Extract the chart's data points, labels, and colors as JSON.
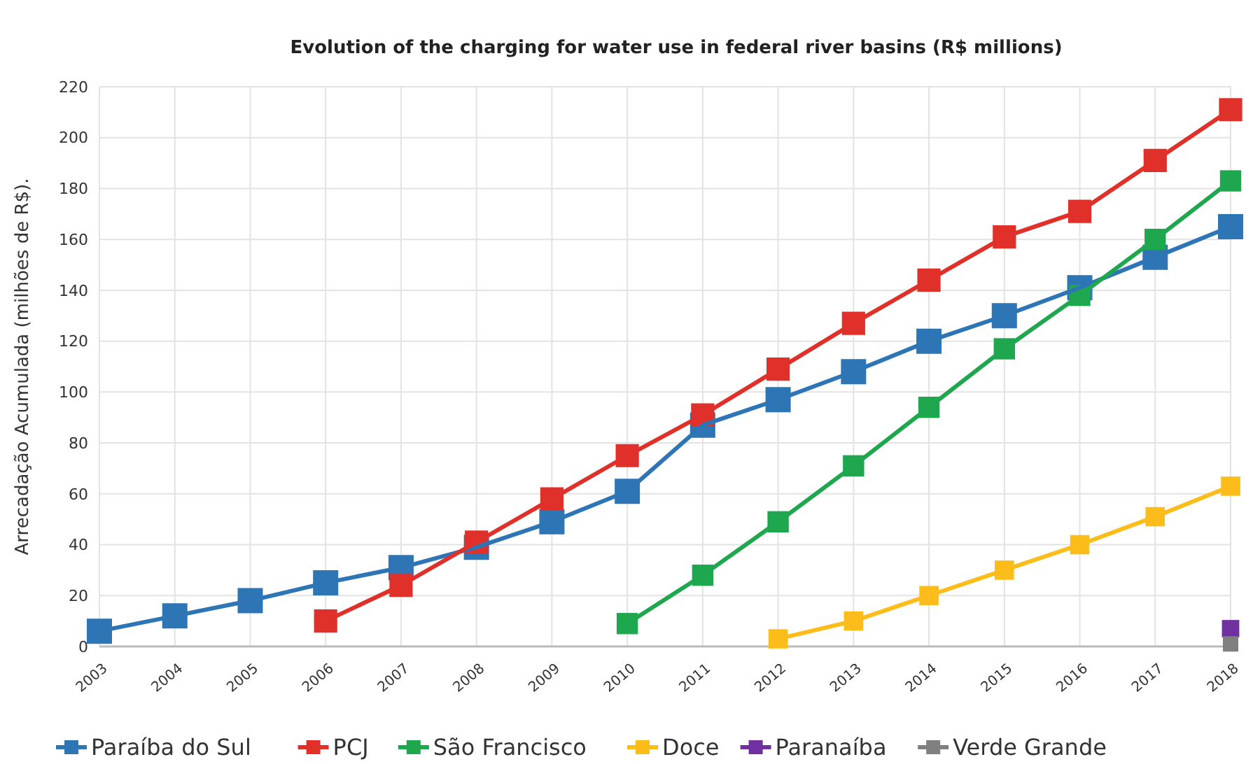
{
  "chart_data": {
    "type": "line",
    "title": "Evolution of the charging for water use in federal river basins (R$ millions)",
    "ylabel": "Arrecadação Acumulada (milhões de R$).",
    "categories": [
      "2003",
      "2004",
      "2005",
      "2006",
      "2007",
      "2008",
      "2009",
      "2010",
      "2011",
      "2012",
      "2013",
      "2014",
      "2015",
      "2016",
      "2017",
      "2018"
    ],
    "ylim": [
      0,
      220
    ],
    "yticks": [
      0,
      20,
      40,
      60,
      80,
      100,
      120,
      140,
      160,
      180,
      200,
      220
    ],
    "grid": true,
    "legend": "bottom",
    "marker": "square",
    "line_style": "solid",
    "series": [
      {
        "name": "Paraíba do Sul",
        "color": "#2e75b6",
        "values": [
          6,
          12,
          18,
          25,
          31,
          39,
          49,
          61,
          87,
          97,
          108,
          120,
          130,
          141,
          153,
          165
        ]
      },
      {
        "name": "PCJ",
        "color": "#e0302a",
        "values": [
          null,
          null,
          null,
          10,
          24,
          41,
          58,
          75,
          91,
          109,
          127,
          144,
          161,
          171,
          191,
          211
        ]
      },
      {
        "name": "São Francisco",
        "color": "#1fa74f",
        "values": [
          null,
          null,
          null,
          null,
          null,
          null,
          null,
          9,
          28,
          49,
          71,
          94,
          117,
          138,
          160,
          183
        ]
      },
      {
        "name": "Doce",
        "color": "#fcbc1a",
        "values": [
          null,
          null,
          null,
          null,
          null,
          null,
          null,
          null,
          null,
          3,
          10,
          20,
          30,
          40,
          51,
          63
        ]
      },
      {
        "name": "Paranaíba",
        "color": "#7030a0",
        "values": [
          null,
          null,
          null,
          null,
          null,
          null,
          null,
          null,
          null,
          null,
          null,
          null,
          null,
          null,
          null,
          7
        ]
      },
      {
        "name": "Verde Grande",
        "color": "#808080",
        "values": [
          null,
          null,
          null,
          null,
          null,
          null,
          null,
          null,
          null,
          null,
          null,
          null,
          null,
          null,
          null,
          1
        ]
      }
    ]
  }
}
